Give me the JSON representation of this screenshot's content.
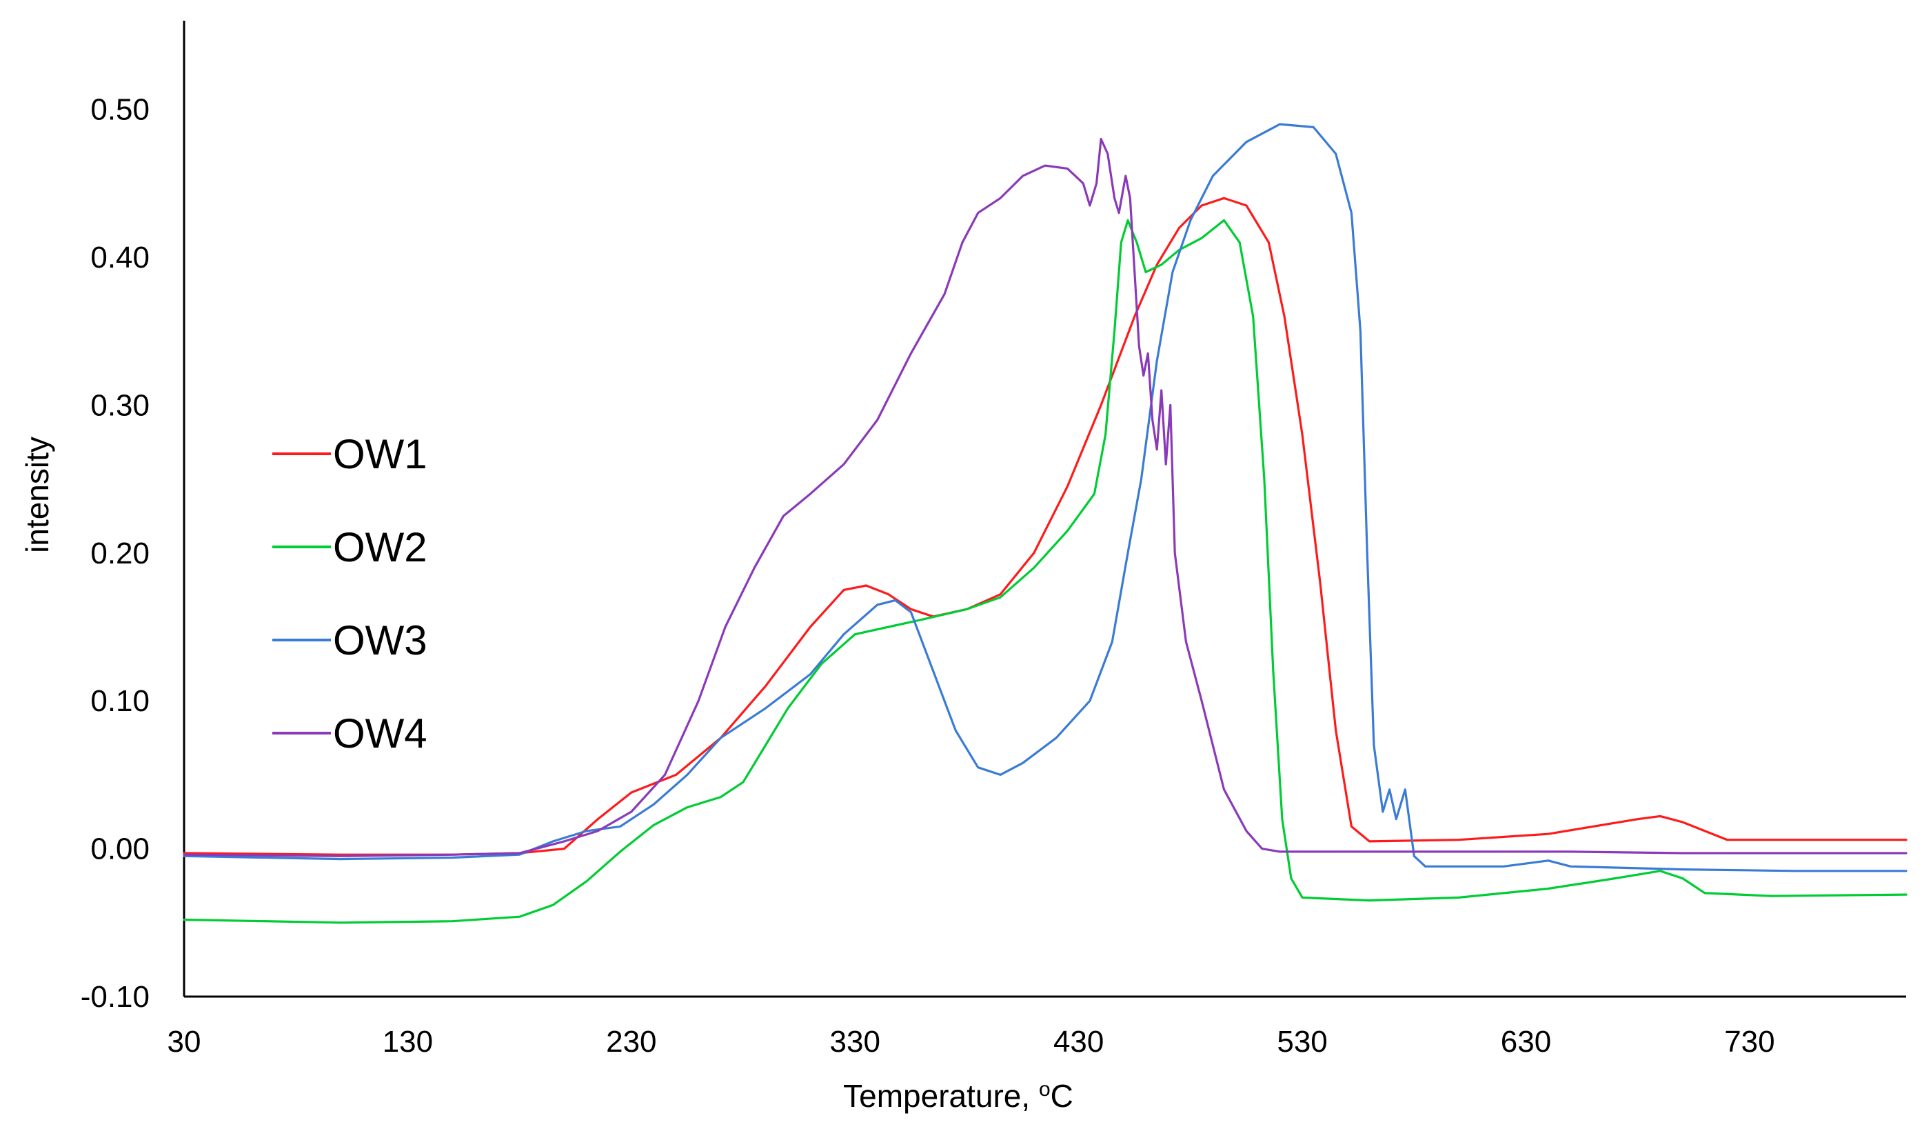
{
  "chart_data": {
    "type": "line",
    "title": "",
    "xlabel": "Temperature, ",
    "xlabel_sup": "o",
    "xlabel_unit": "C",
    "ylabel": "intensity",
    "xlim": [
      30,
      800
    ],
    "ylim": [
      -0.1,
      0.56
    ],
    "xticks": [
      30,
      130,
      230,
      330,
      430,
      530,
      630,
      730
    ],
    "xtick_labels": [
      "30",
      "130",
      "230",
      "330",
      "430",
      "530",
      "630",
      "730"
    ],
    "yticks": [
      -0.1,
      0.0,
      0.1,
      0.2,
      0.3,
      0.4,
      0.5
    ],
    "ytick_labels": [
      "-0.10",
      "0.00",
      "0.10",
      "0.20",
      "0.30",
      "0.40",
      "0.50"
    ],
    "grid": false,
    "legend_position": "left-middle",
    "series": [
      {
        "name": "OW1",
        "color": "#ff1a1a",
        "points": [
          [
            30,
            -0.003
          ],
          [
            100,
            -0.004
          ],
          [
            150,
            -0.004
          ],
          [
            180,
            -0.003
          ],
          [
            200,
            0.0
          ],
          [
            215,
            0.02
          ],
          [
            230,
            0.038
          ],
          [
            250,
            0.05
          ],
          [
            270,
            0.075
          ],
          [
            290,
            0.11
          ],
          [
            310,
            0.15
          ],
          [
            325,
            0.175
          ],
          [
            335,
            0.178
          ],
          [
            345,
            0.172
          ],
          [
            355,
            0.162
          ],
          [
            365,
            0.157
          ],
          [
            380,
            0.162
          ],
          [
            395,
            0.172
          ],
          [
            410,
            0.2
          ],
          [
            425,
            0.245
          ],
          [
            440,
            0.3
          ],
          [
            455,
            0.36
          ],
          [
            465,
            0.395
          ],
          [
            475,
            0.42
          ],
          [
            485,
            0.435
          ],
          [
            495,
            0.44
          ],
          [
            505,
            0.435
          ],
          [
            515,
            0.41
          ],
          [
            522,
            0.36
          ],
          [
            530,
            0.28
          ],
          [
            538,
            0.18
          ],
          [
            545,
            0.08
          ],
          [
            552,
            0.015
          ],
          [
            560,
            0.005
          ],
          [
            600,
            0.006
          ],
          [
            640,
            0.01
          ],
          [
            680,
            0.02
          ],
          [
            690,
            0.022
          ],
          [
            700,
            0.018
          ],
          [
            710,
            0.012
          ],
          [
            720,
            0.006
          ],
          [
            760,
            0.006
          ],
          [
            800,
            0.006
          ]
        ]
      },
      {
        "name": "OW2",
        "color": "#00cc33",
        "points": [
          [
            30,
            -0.048
          ],
          [
            100,
            -0.05
          ],
          [
            150,
            -0.049
          ],
          [
            180,
            -0.046
          ],
          [
            195,
            -0.038
          ],
          [
            210,
            -0.022
          ],
          [
            225,
            -0.002
          ],
          [
            240,
            0.016
          ],
          [
            255,
            0.028
          ],
          [
            270,
            0.035
          ],
          [
            280,
            0.045
          ],
          [
            290,
            0.07
          ],
          [
            300,
            0.095
          ],
          [
            315,
            0.125
          ],
          [
            330,
            0.145
          ],
          [
            345,
            0.15
          ],
          [
            360,
            0.155
          ],
          [
            380,
            0.162
          ],
          [
            395,
            0.17
          ],
          [
            410,
            0.19
          ],
          [
            425,
            0.215
          ],
          [
            437,
            0.24
          ],
          [
            442,
            0.28
          ],
          [
            446,
            0.35
          ],
          [
            449,
            0.41
          ],
          [
            452,
            0.425
          ],
          [
            456,
            0.41
          ],
          [
            460,
            0.39
          ],
          [
            467,
            0.395
          ],
          [
            475,
            0.405
          ],
          [
            485,
            0.413
          ],
          [
            495,
            0.425
          ],
          [
            502,
            0.41
          ],
          [
            508,
            0.36
          ],
          [
            513,
            0.25
          ],
          [
            517,
            0.12
          ],
          [
            521,
            0.02
          ],
          [
            525,
            -0.02
          ],
          [
            530,
            -0.033
          ],
          [
            560,
            -0.035
          ],
          [
            600,
            -0.033
          ],
          [
            640,
            -0.027
          ],
          [
            670,
            -0.02
          ],
          [
            690,
            -0.015
          ],
          [
            700,
            -0.02
          ],
          [
            710,
            -0.03
          ],
          [
            740,
            -0.032
          ],
          [
            800,
            -0.031
          ]
        ]
      },
      {
        "name": "OW3",
        "color": "#3a7bd5",
        "points": [
          [
            30,
            -0.005
          ],
          [
            100,
            -0.007
          ],
          [
            150,
            -0.006
          ],
          [
            180,
            -0.004
          ],
          [
            195,
            0.005
          ],
          [
            210,
            0.012
          ],
          [
            225,
            0.015
          ],
          [
            240,
            0.03
          ],
          [
            255,
            0.05
          ],
          [
            270,
            0.075
          ],
          [
            290,
            0.095
          ],
          [
            310,
            0.118
          ],
          [
            325,
            0.145
          ],
          [
            340,
            0.165
          ],
          [
            348,
            0.168
          ],
          [
            355,
            0.16
          ],
          [
            365,
            0.12
          ],
          [
            375,
            0.08
          ],
          [
            385,
            0.055
          ],
          [
            395,
            0.05
          ],
          [
            405,
            0.058
          ],
          [
            420,
            0.075
          ],
          [
            435,
            0.1
          ],
          [
            445,
            0.14
          ],
          [
            452,
            0.2
          ],
          [
            458,
            0.25
          ],
          [
            465,
            0.33
          ],
          [
            472,
            0.39
          ],
          [
            480,
            0.425
          ],
          [
            490,
            0.455
          ],
          [
            505,
            0.478
          ],
          [
            520,
            0.49
          ],
          [
            535,
            0.488
          ],
          [
            545,
            0.47
          ],
          [
            552,
            0.43
          ],
          [
            556,
            0.35
          ],
          [
            559,
            0.2
          ],
          [
            562,
            0.07
          ],
          [
            566,
            0.025
          ],
          [
            569,
            0.04
          ],
          [
            572,
            0.02
          ],
          [
            576,
            0.04
          ],
          [
            580,
            -0.005
          ],
          [
            585,
            -0.012
          ],
          [
            620,
            -0.012
          ],
          [
            640,
            -0.008
          ],
          [
            650,
            -0.012
          ],
          [
            700,
            -0.014
          ],
          [
            750,
            -0.015
          ],
          [
            800,
            -0.015
          ]
        ]
      },
      {
        "name": "OW4",
        "color": "#8a3ab9",
        "points": [
          [
            30,
            -0.004
          ],
          [
            100,
            -0.005
          ],
          [
            150,
            -0.004
          ],
          [
            180,
            -0.003
          ],
          [
            200,
            0.005
          ],
          [
            215,
            0.012
          ],
          [
            230,
            0.025
          ],
          [
            245,
            0.05
          ],
          [
            260,
            0.1
          ],
          [
            272,
            0.15
          ],
          [
            285,
            0.19
          ],
          [
            298,
            0.225
          ],
          [
            310,
            0.24
          ],
          [
            325,
            0.26
          ],
          [
            340,
            0.29
          ],
          [
            355,
            0.335
          ],
          [
            370,
            0.375
          ],
          [
            378,
            0.41
          ],
          [
            385,
            0.43
          ],
          [
            395,
            0.44
          ],
          [
            405,
            0.455
          ],
          [
            415,
            0.462
          ],
          [
            425,
            0.46
          ],
          [
            432,
            0.45
          ],
          [
            435,
            0.435
          ],
          [
            438,
            0.45
          ],
          [
            440,
            0.48
          ],
          [
            443,
            0.47
          ],
          [
            446,
            0.44
          ],
          [
            448,
            0.43
          ],
          [
            451,
            0.455
          ],
          [
            453,
            0.44
          ],
          [
            455,
            0.39
          ],
          [
            457,
            0.34
          ],
          [
            459,
            0.32
          ],
          [
            461,
            0.335
          ],
          [
            463,
            0.29
          ],
          [
            465,
            0.27
          ],
          [
            467,
            0.31
          ],
          [
            469,
            0.26
          ],
          [
            471,
            0.3
          ],
          [
            473,
            0.2
          ],
          [
            478,
            0.14
          ],
          [
            485,
            0.1
          ],
          [
            495,
            0.04
          ],
          [
            505,
            0.012
          ],
          [
            512,
            0.0
          ],
          [
            520,
            -0.002
          ],
          [
            550,
            -0.002
          ],
          [
            600,
            -0.002
          ],
          [
            650,
            -0.002
          ],
          [
            700,
            -0.003
          ],
          [
            750,
            -0.003
          ],
          [
            800,
            -0.003
          ]
        ]
      }
    ]
  }
}
